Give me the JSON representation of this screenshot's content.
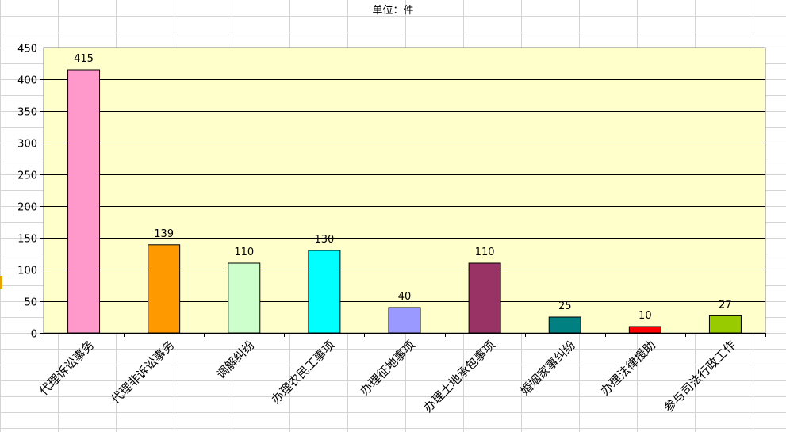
{
  "unit_label": "单位：件",
  "colors": {
    "plot_bg": "#ffffcc",
    "grid_line": "#000000",
    "sheet_grid": "#d4d4d4"
  },
  "chart_data": {
    "type": "bar",
    "title": "单位：件",
    "xlabel": "",
    "ylabel": "",
    "ylim": [
      0,
      450
    ],
    "yticks": [
      0,
      50,
      100,
      150,
      200,
      250,
      300,
      350,
      400,
      450
    ],
    "grid": true,
    "legend": "none",
    "categories": [
      "代理诉讼事务",
      "代理非诉讼事务",
      "调解纠纷",
      "办理农民工事项",
      "办理征地事项",
      "办理土地承包事项",
      "婚姻家事纠纷",
      "办理法律援助",
      "参与司法行政工作"
    ],
    "values": [
      415,
      139,
      110,
      130,
      40,
      110,
      25,
      10,
      27
    ],
    "bar_colors": [
      "#ff99cc",
      "#ff9900",
      "#ccffcc",
      "#00ffff",
      "#9999ff",
      "#993366",
      "#008080",
      "#ff0000",
      "#99cc00"
    ]
  }
}
